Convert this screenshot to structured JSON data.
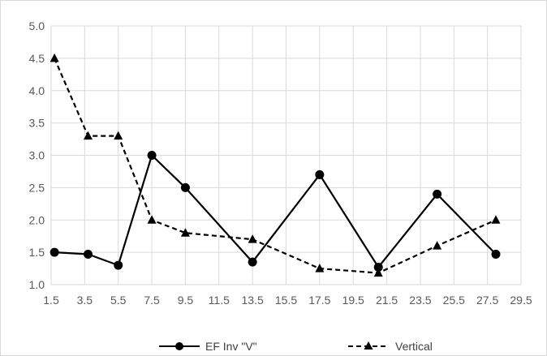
{
  "chart_data": {
    "type": "line",
    "title": "",
    "xlabel": "",
    "ylabel": "",
    "xlim": [
      1.5,
      29.5
    ],
    "ylim": [
      1.0,
      5.0
    ],
    "x_ticks": [
      "1.5",
      "3.5",
      "5.5",
      "7.5",
      "9.5",
      "11.5",
      "13.5",
      "15.5",
      "17.5",
      "19.5",
      "21.5",
      "23.5",
      "25.5",
      "27.5",
      "29.5"
    ],
    "y_ticks": [
      "1.0",
      "1.5",
      "2.0",
      "2.5",
      "3.0",
      "3.5",
      "4.0",
      "4.5",
      "5.0"
    ],
    "grid": true,
    "legend": "bottom",
    "series": [
      {
        "name": "EF Inv \"V\"",
        "color": "#000000",
        "line_style": "solid",
        "marker": "circle",
        "points": [
          [
            1.7,
            1.5
          ],
          [
            3.7,
            1.47
          ],
          [
            5.5,
            1.3
          ],
          [
            7.5,
            3.0
          ],
          [
            9.5,
            2.5
          ],
          [
            13.5,
            1.35
          ],
          [
            17.5,
            2.7
          ],
          [
            21.0,
            1.27
          ],
          [
            24.5,
            2.4
          ],
          [
            28.0,
            1.47
          ]
        ]
      },
      {
        "name": "Vertical",
        "color": "#000000",
        "line_style": "dashed",
        "marker": "triangle",
        "points": [
          [
            1.7,
            4.5
          ],
          [
            3.7,
            3.3
          ],
          [
            5.5,
            3.3
          ],
          [
            7.5,
            2.0
          ],
          [
            9.5,
            1.8
          ],
          [
            13.5,
            1.7
          ],
          [
            17.5,
            1.25
          ],
          [
            21.0,
            1.18
          ],
          [
            24.5,
            1.6
          ],
          [
            28.0,
            2.0
          ]
        ]
      }
    ]
  }
}
